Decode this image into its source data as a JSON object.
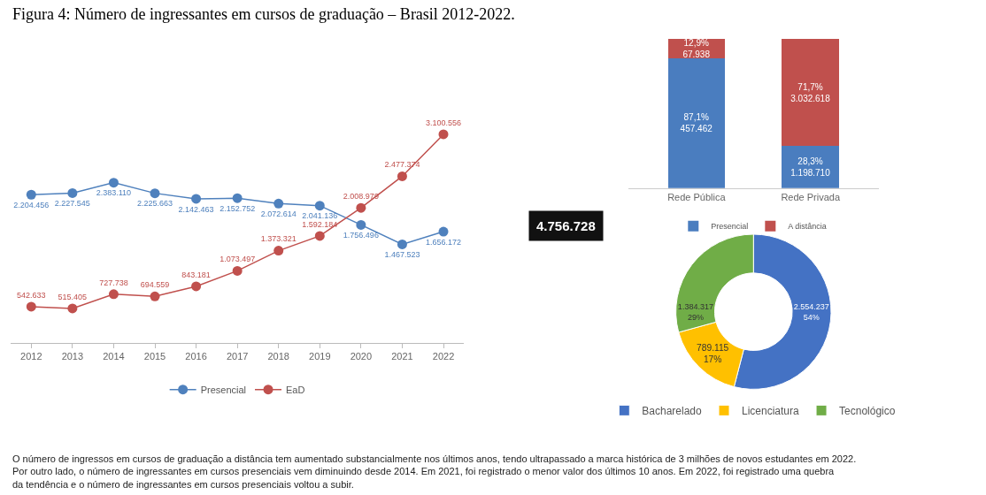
{
  "chart_data": [
    {
      "type": "line",
      "title": "Figura 4: Número de ingressantes em cursos de graduação – Brasil 2012-2022.",
      "categories": [
        "2012",
        "2013",
        "2014",
        "2015",
        "2016",
        "2017",
        "2018",
        "2019",
        "2020",
        "2021",
        "2022"
      ],
      "series": [
        {
          "name": "Presencial",
          "color": "#4f81bd",
          "values": [
            2204456,
            2227545,
            2383110,
            2225663,
            2142463,
            2152752,
            2072614,
            2041136,
            1756496,
            1467523,
            1656172
          ],
          "value_labels": [
            "2.204.456",
            "2.227.545",
            "2.383.110",
            "2.225.663",
            "2.142.463",
            "2.152.752",
            "2.072.614",
            "2.041.136",
            "1.756.496",
            "1.467.523",
            "1.656.172"
          ]
        },
        {
          "name": "EaD",
          "color": "#c0504d",
          "values": [
            542633,
            515405,
            727738,
            694559,
            843181,
            1073497,
            1373321,
            1592184,
            2008979,
            2477374,
            3100556
          ],
          "value_labels": [
            "542.633",
            "515.405",
            "727.738",
            "694.559",
            "843.181",
            "1.073.497",
            "1.373.321",
            "1.592.184",
            "2.008.979",
            "2.477.374",
            "3.100.556"
          ]
        }
      ],
      "marker": "circle",
      "line_style": "solid",
      "grid": false,
      "legend": "bottom",
      "tick_labels": "x",
      "annotations": [
        "O número de ingressos em cursos de graduação a distância tem aumentado substancialmente nos últimos anos, tendo ultrapassado a marca histórica de 3 milhões de novos estudantes em 2022. Por outro lado, o número de ingressantes em cursos presenciais vem diminuindo desde 2014. Em 2021, foi registrado o menor valor dos últimos 10 anos. Em 2022, foi registrado uma quebra da tendência e o número de ingressantes em cursos presenciais voltou a subir."
      ]
    },
    {
      "type": "other",
      "annotations": [
        "4.756.728"
      ]
    },
    {
      "type": "bar",
      "stacked": true,
      "categories": [
        "Rede Pública",
        "Rede Privada"
      ],
      "series": [
        {
          "name": "Presencial",
          "color": "#4a7dbf",
          "values": [
            87.1,
            28.3
          ],
          "value_labels": [
            "87,1%\n457.462",
            "28,3%\n1.198.710"
          ]
        },
        {
          "name": "A distância",
          "color": "#c0504d",
          "values": [
            12.9,
            71.7
          ],
          "value_labels": [
            "12,9%\n67.938",
            "71,7%\n3.032.618"
          ]
        }
      ],
      "grid": false,
      "legend": "bottom"
    },
    {
      "type": "donut",
      "categories": [
        "Bacharelado",
        "Licenciatura",
        "Tecnológico"
      ],
      "values": [
        2554237,
        789115,
        1384317
      ],
      "colors": [
        "#4472c4",
        "#ffc000",
        "#70ad47"
      ],
      "value_labels": [
        "2.554.237\n54%",
        "789.115\n17%",
        "1.384.317\n29%"
      ],
      "legend": "bottom"
    }
  ]
}
